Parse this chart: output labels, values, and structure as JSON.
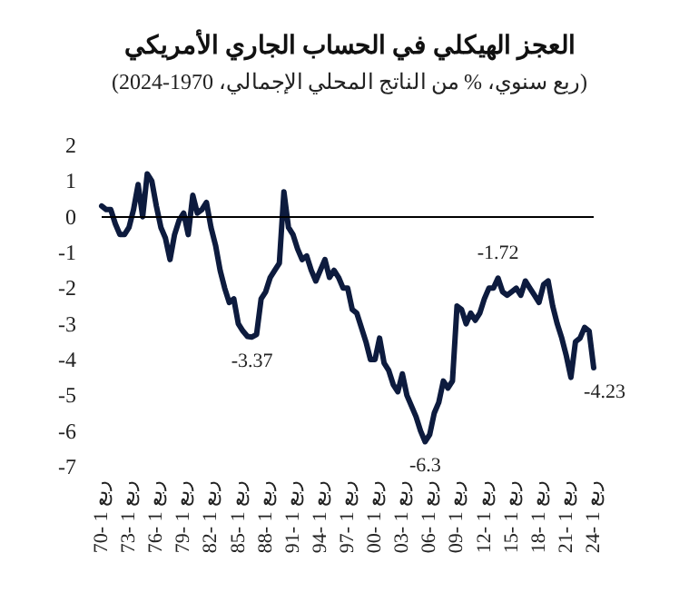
{
  "chart_data": {
    "type": "line",
    "title": "العجز الهيكلي في الحساب الجاري الأمريكي",
    "subtitle": "(ربع سنوي، % من الناتج المحلي الإجمالي، 1970-2024)",
    "categories": [
      "70- 1 ربع",
      null,
      null,
      null,
      null,
      null,
      "73- 1 ربع",
      null,
      null,
      null,
      null,
      null,
      "76- 1 ربع",
      null,
      null,
      null,
      null,
      null,
      "79- 1 ربع",
      null,
      null,
      null,
      null,
      null,
      "82- 1 ربع",
      null,
      null,
      null,
      null,
      null,
      "85- 1 ربع",
      null,
      null,
      null,
      null,
      null,
      "88- 1 ربع",
      null,
      null,
      null,
      null,
      null,
      "91- 1 ربع",
      null,
      null,
      null,
      null,
      null,
      "94- 1 ربع",
      null,
      null,
      null,
      null,
      null,
      "97- 1 ربع",
      null,
      null,
      null,
      null,
      null,
      "00- 1 ربع",
      null,
      null,
      null,
      null,
      null,
      "03- 1 ربع",
      null,
      null,
      null,
      null,
      null,
      "06- 1 ربع",
      null,
      null,
      null,
      null,
      null,
      "09- 1 ربع",
      null,
      null,
      null,
      null,
      null,
      "12- 1 ربع",
      null,
      null,
      null,
      null,
      null,
      "15- 1 ربع",
      null,
      null,
      null,
      null,
      null,
      "18- 1 ربع",
      null,
      null,
      null,
      null,
      null,
      "21- 1 ربع",
      null,
      null,
      null,
      null,
      null,
      "24- 1 ربع"
    ],
    "series": [
      {
        "color": "#0d1b3e",
        "values": [
          0.3,
          0.2,
          0.2,
          -0.2,
          -0.5,
          -0.5,
          -0.3,
          0.2,
          0.9,
          0.0,
          1.2,
          1.0,
          0.3,
          -0.3,
          -0.6,
          -1.2,
          -0.5,
          -0.1,
          0.1,
          -0.5,
          0.6,
          0.1,
          0.2,
          0.4,
          -0.3,
          -0.8,
          -1.5,
          -2.0,
          -2.4,
          -2.3,
          -3.0,
          -3.2,
          -3.35,
          -3.37,
          -3.3,
          -2.3,
          -2.1,
          -1.7,
          -1.5,
          -1.3,
          0.7,
          -0.3,
          -0.5,
          -0.9,
          -1.2,
          -1.1,
          -1.5,
          -1.8,
          -1.5,
          -1.2,
          -1.7,
          -1.5,
          -1.7,
          -2.0,
          -2.0,
          -2.6,
          -2.7,
          -3.1,
          -3.5,
          -4.0,
          -4.0,
          -3.4,
          -4.1,
          -4.3,
          -4.7,
          -4.9,
          -4.4,
          -5.0,
          -5.3,
          -5.6,
          -6.0,
          -6.3,
          -6.1,
          -5.5,
          -5.2,
          -4.6,
          -4.8,
          -4.6,
          -2.5,
          -2.6,
          -3.0,
          -2.7,
          -2.9,
          -2.7,
          -2.3,
          -2.0,
          -2.0,
          -1.72,
          -2.1,
          -2.2,
          -2.1,
          -2.0,
          -2.2,
          -1.8,
          -2.0,
          -2.2,
          -2.4,
          -1.9,
          -1.8,
          -2.5,
          -3.0,
          -3.4,
          -3.9,
          -4.5,
          -3.5,
          -3.4,
          -3.1,
          -3.2,
          -4.23
        ],
        "value_labels": [
          null,
          null,
          null,
          null,
          null,
          null,
          null,
          null,
          null,
          null,
          null,
          null,
          null,
          null,
          null,
          null,
          null,
          null,
          null,
          null,
          null,
          null,
          null,
          null,
          null,
          null,
          null,
          null,
          null,
          null,
          null,
          null,
          null,
          "-3.37",
          null,
          null,
          null,
          null,
          null,
          null,
          null,
          null,
          null,
          null,
          null,
          null,
          null,
          null,
          null,
          null,
          null,
          null,
          null,
          null,
          null,
          null,
          null,
          null,
          null,
          null,
          null,
          null,
          null,
          null,
          null,
          null,
          null,
          null,
          null,
          null,
          null,
          "-6.3",
          null,
          null,
          null,
          null,
          null,
          null,
          null,
          null,
          null,
          null,
          null,
          null,
          null,
          null,
          null,
          "-1.72",
          null,
          null,
          null,
          null,
          null,
          null,
          null,
          null,
          null,
          null,
          null,
          null,
          null,
          null,
          null,
          null,
          null,
          null,
          null,
          null,
          "-4.23"
        ]
      }
    ],
    "ylim": [
      -7,
      2
    ],
    "yticks": [
      -7,
      -6,
      -5,
      -4,
      -3,
      -2,
      -1,
      0,
      1,
      2
    ],
    "ref_lines": [
      {
        "axis": "y",
        "value": 0,
        "color": "#000000"
      }
    ],
    "grid": false,
    "marker": "none",
    "line_style": "solid"
  }
}
